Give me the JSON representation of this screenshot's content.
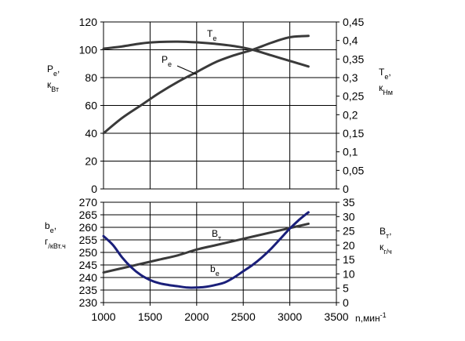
{
  "chart_data": [
    {
      "type": "line",
      "panel": "top",
      "x_axis": {
        "range": [
          1000,
          3500
        ],
        "ticks": [
          1000,
          1500,
          2000,
          2500,
          3000,
          3500
        ]
      },
      "y_left": {
        "range": [
          0,
          120
        ],
        "ticks": [
          "0",
          "20",
          "40",
          "60",
          "80",
          "100",
          "120"
        ],
        "label_lines": [
          "Pe,",
          "кВт"
        ]
      },
      "y_right": {
        "range": [
          0,
          0.45
        ],
        "ticks": [
          "0",
          "0,05",
          "0,1",
          "0,15",
          "0,2",
          "0,25",
          "0,3",
          "0,35",
          "0,4",
          "0,45"
        ],
        "label_lines": [
          "Te,",
          "кНм"
        ]
      },
      "series": [
        {
          "name": "Pe",
          "axis": "left",
          "color": "#3a3a3a",
          "x": [
            1000,
            1200,
            1400,
            1600,
            1800,
            2000,
            2200,
            2400,
            2600,
            2800,
            3000,
            3200
          ],
          "y": [
            40,
            51,
            60,
            69,
            77,
            84,
            91,
            96,
            100,
            105,
            109,
            110
          ]
        },
        {
          "name": "Te",
          "axis": "right",
          "color": "#3a3a3a",
          "x": [
            1000,
            1200,
            1400,
            1600,
            1800,
            2000,
            2200,
            2400,
            2600,
            2800,
            3000,
            3200
          ],
          "y": [
            0.378,
            0.384,
            0.392,
            0.396,
            0.397,
            0.395,
            0.391,
            0.385,
            0.375,
            0.36,
            0.345,
            0.33
          ]
        }
      ]
    },
    {
      "type": "line",
      "panel": "bottom",
      "x_axis": {
        "range": [
          1000,
          3500
        ],
        "ticks": [
          "1000",
          "1500",
          "2000",
          "2500",
          "3000",
          "3500"
        ],
        "label": "n,мин-1"
      },
      "y_left": {
        "range": [
          230,
          270
        ],
        "ticks": [
          "230",
          "235",
          "240",
          "245",
          "250",
          "255",
          "260",
          "265",
          "270"
        ],
        "label_lines": [
          "be,",
          "г/кВт.ч"
        ]
      },
      "y_right": {
        "range": [
          0,
          35
        ],
        "ticks": [
          "0",
          "5",
          "10",
          "15",
          "20",
          "25",
          "30",
          "35"
        ],
        "label_lines": [
          "Вт,",
          "кг/ч"
        ]
      },
      "series": [
        {
          "name": "Bт",
          "axis": "right",
          "color": "#3a3a3a",
          "x": [
            1000,
            1200,
            1400,
            1600,
            1800,
            2000,
            2200,
            2400,
            2600,
            2800,
            3000,
            3200
          ],
          "y": [
            10.5,
            12,
            13.5,
            15,
            16.5,
            18.5,
            20,
            21.5,
            23,
            24.5,
            26,
            27.5
          ]
        },
        {
          "name": "be",
          "axis": "left",
          "color": "#1a1f7a",
          "x": [
            1000,
            1100,
            1200,
            1300,
            1400,
            1500,
            1600,
            1700,
            1800,
            1900,
            2000,
            2100,
            2200,
            2300,
            2400,
            2500,
            2600,
            2700,
            2800,
            2900,
            3000,
            3100,
            3200
          ],
          "y": [
            256.5,
            253,
            248,
            244,
            241,
            239,
            237.7,
            237,
            236.5,
            236,
            236,
            236.3,
            237,
            238,
            240,
            242.5,
            245,
            248,
            251.5,
            255.5,
            259.5,
            263,
            266
          ]
        }
      ]
    }
  ]
}
